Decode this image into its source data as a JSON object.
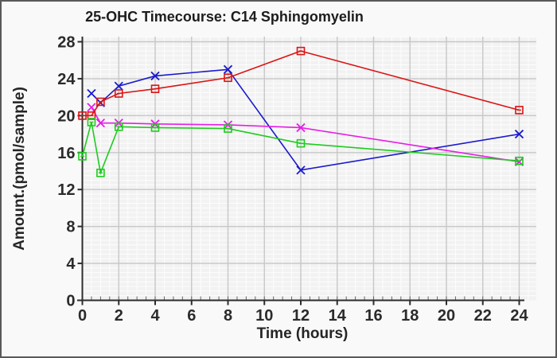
{
  "window": {
    "background": "#f9f9f9",
    "border_color": "#59595b"
  },
  "chart_data": {
    "type": "line",
    "title": "25-OHC Timecourse: C14 Sphingomyelin",
    "xlabel": "Time (hours)",
    "ylabel": "Amount.(pmol/sample)",
    "xlim": [
      0,
      24
    ],
    "ylim": [
      0,
      28
    ],
    "x_ticks": [
      0,
      2,
      4,
      6,
      8,
      10,
      12,
      14,
      16,
      18,
      20,
      22,
      24
    ],
    "y_ticks": [
      0,
      4,
      8,
      12,
      16,
      20,
      24,
      28
    ],
    "x_minor_step": 0.5,
    "y_minor_step": 0.5,
    "grid": {
      "plot_bg": "#f2f2f2",
      "minor_color": "#fdfdfd",
      "major_color": "#c7c7c7",
      "axis_color": "#2d2d2d",
      "minor_tick_color": "#666666"
    },
    "legend": "none",
    "series": [
      {
        "name": "blue",
        "color": "#1a1acd",
        "marker": "x-cross",
        "points": [
          [
            0.5,
            22.4
          ],
          [
            1,
            21.4
          ],
          [
            2,
            23.2
          ],
          [
            4,
            24.3
          ],
          [
            8,
            25.0
          ],
          [
            12,
            14.1
          ],
          [
            24,
            18.0
          ]
        ]
      },
      {
        "name": "magenta",
        "color": "#e61ee6",
        "marker": "x-cross",
        "points": [
          [
            0.5,
            20.9
          ],
          [
            1,
            19.2
          ],
          [
            2,
            19.2
          ],
          [
            4,
            19.1
          ],
          [
            8,
            19.0
          ],
          [
            12,
            18.7
          ],
          [
            24,
            15.0
          ]
        ]
      },
      {
        "name": "red",
        "color": "#dc1414",
        "marker": "square-dash",
        "points": [
          [
            0,
            20.0
          ],
          [
            0.5,
            20.0
          ],
          [
            1,
            21.5
          ],
          [
            2,
            22.4
          ],
          [
            4,
            22.9
          ],
          [
            8,
            24.1
          ],
          [
            12,
            27.0
          ],
          [
            24,
            20.6
          ]
        ]
      },
      {
        "name": "green",
        "color": "#1ecc1e",
        "marker": "square-dash",
        "points": [
          [
            0,
            15.6
          ],
          [
            0.5,
            19.3
          ],
          [
            1,
            13.8
          ],
          [
            2,
            18.8
          ],
          [
            4,
            18.7
          ],
          [
            8,
            18.6
          ],
          [
            12,
            17.0
          ],
          [
            24,
            15.1
          ]
        ]
      }
    ]
  }
}
